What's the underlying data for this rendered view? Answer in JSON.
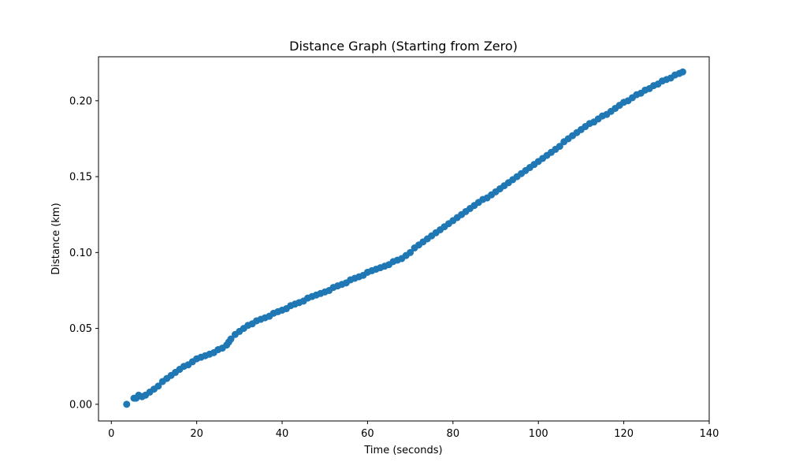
{
  "chart_data": {
    "type": "scatter",
    "title": "Distance Graph (Starting from Zero)",
    "xlabel": "Time (seconds)",
    "ylabel": "Distance (km)",
    "xlim": [
      -3,
      140
    ],
    "ylim": [
      -0.011,
      0.229
    ],
    "xticks": [
      0,
      20,
      40,
      60,
      80,
      100,
      120,
      140
    ],
    "yticks": [
      0.0,
      0.05,
      0.1,
      0.15,
      0.2
    ],
    "xtick_labels": [
      "0",
      "20",
      "40",
      "60",
      "80",
      "100",
      "120",
      "140"
    ],
    "ytick_labels": [
      "0.00",
      "0.05",
      "0.10",
      "0.15",
      "0.20"
    ],
    "grid": false,
    "legend": "none",
    "marker_color": "#1f77b4",
    "points": [
      [
        3.6,
        0.0
      ],
      [
        5.3,
        0.004
      ],
      [
        5.8,
        0.004
      ],
      [
        6.4,
        0.006
      ],
      [
        7.2,
        0.005
      ],
      [
        8.0,
        0.006
      ],
      [
        9.0,
        0.008
      ],
      [
        10.0,
        0.01
      ],
      [
        11.0,
        0.012
      ],
      [
        12.0,
        0.015
      ],
      [
        13.0,
        0.017
      ],
      [
        14.0,
        0.019
      ],
      [
        15.0,
        0.021
      ],
      [
        16.0,
        0.023
      ],
      [
        17.0,
        0.025
      ],
      [
        18.0,
        0.026
      ],
      [
        19.0,
        0.028
      ],
      [
        20.0,
        0.03
      ],
      [
        21.0,
        0.031
      ],
      [
        22.0,
        0.032
      ],
      [
        23.0,
        0.033
      ],
      [
        24.0,
        0.034
      ],
      [
        25.0,
        0.036
      ],
      [
        26.0,
        0.037
      ],
      [
        27.0,
        0.039
      ],
      [
        27.5,
        0.041
      ],
      [
        28.0,
        0.043
      ],
      [
        29.0,
        0.046
      ],
      [
        30.0,
        0.048
      ],
      [
        31.0,
        0.05
      ],
      [
        32.0,
        0.052
      ],
      [
        33.0,
        0.053
      ],
      [
        34.0,
        0.055
      ],
      [
        35.0,
        0.056
      ],
      [
        36.0,
        0.057
      ],
      [
        37.0,
        0.058
      ],
      [
        38.0,
        0.06
      ],
      [
        39.0,
        0.061
      ],
      [
        40.0,
        0.062
      ],
      [
        41.0,
        0.063
      ],
      [
        42.0,
        0.065
      ],
      [
        43.0,
        0.066
      ],
      [
        44.0,
        0.067
      ],
      [
        45.0,
        0.068
      ],
      [
        46.0,
        0.07
      ],
      [
        47.0,
        0.071
      ],
      [
        48.0,
        0.072
      ],
      [
        49.0,
        0.073
      ],
      [
        50.0,
        0.074
      ],
      [
        51.0,
        0.075
      ],
      [
        52.0,
        0.077
      ],
      [
        53.0,
        0.078
      ],
      [
        54.0,
        0.079
      ],
      [
        55.0,
        0.08
      ],
      [
        56.0,
        0.082
      ],
      [
        57.0,
        0.083
      ],
      [
        58.0,
        0.084
      ],
      [
        59.0,
        0.085
      ],
      [
        60.0,
        0.087
      ],
      [
        61.0,
        0.088
      ],
      [
        62.0,
        0.089
      ],
      [
        63.0,
        0.09
      ],
      [
        64.0,
        0.091
      ],
      [
        65.0,
        0.092
      ],
      [
        66.0,
        0.094
      ],
      [
        67.0,
        0.095
      ],
      [
        68.0,
        0.096
      ],
      [
        69.0,
        0.098
      ],
      [
        70.0,
        0.1
      ],
      [
        71.0,
        0.103
      ],
      [
        72.0,
        0.105
      ],
      [
        73.0,
        0.107
      ],
      [
        74.0,
        0.109
      ],
      [
        75.0,
        0.111
      ],
      [
        76.0,
        0.113
      ],
      [
        77.0,
        0.115
      ],
      [
        78.0,
        0.117
      ],
      [
        79.0,
        0.119
      ],
      [
        80.0,
        0.121
      ],
      [
        81.0,
        0.123
      ],
      [
        82.0,
        0.125
      ],
      [
        83.0,
        0.127
      ],
      [
        84.0,
        0.129
      ],
      [
        85.0,
        0.131
      ],
      [
        86.0,
        0.133
      ],
      [
        87.0,
        0.135
      ],
      [
        88.0,
        0.136
      ],
      [
        89.0,
        0.138
      ],
      [
        90.0,
        0.14
      ],
      [
        91.0,
        0.142
      ],
      [
        92.0,
        0.144
      ],
      [
        93.0,
        0.146
      ],
      [
        94.0,
        0.148
      ],
      [
        95.0,
        0.15
      ],
      [
        96.0,
        0.152
      ],
      [
        97.0,
        0.154
      ],
      [
        98.0,
        0.156
      ],
      [
        99.0,
        0.158
      ],
      [
        100.0,
        0.16
      ],
      [
        101.0,
        0.162
      ],
      [
        102.0,
        0.164
      ],
      [
        103.0,
        0.166
      ],
      [
        104.0,
        0.168
      ],
      [
        105.0,
        0.17
      ],
      [
        106.0,
        0.173
      ],
      [
        107.0,
        0.175
      ],
      [
        108.0,
        0.177
      ],
      [
        109.0,
        0.179
      ],
      [
        110.0,
        0.181
      ],
      [
        111.0,
        0.183
      ],
      [
        112.0,
        0.185
      ],
      [
        113.0,
        0.186
      ],
      [
        114.0,
        0.188
      ],
      [
        115.0,
        0.19
      ],
      [
        116.0,
        0.191
      ],
      [
        117.0,
        0.193
      ],
      [
        118.0,
        0.195
      ],
      [
        119.0,
        0.197
      ],
      [
        120.0,
        0.199
      ],
      [
        121.0,
        0.2
      ],
      [
        122.0,
        0.202
      ],
      [
        123.0,
        0.204
      ],
      [
        124.0,
        0.205
      ],
      [
        125.0,
        0.207
      ],
      [
        126.0,
        0.208
      ],
      [
        127.0,
        0.21
      ],
      [
        128.0,
        0.211
      ],
      [
        129.0,
        0.213
      ],
      [
        130.0,
        0.214
      ],
      [
        131.0,
        0.215
      ],
      [
        132.0,
        0.217
      ],
      [
        133.0,
        0.218
      ],
      [
        133.8,
        0.219
      ]
    ]
  }
}
